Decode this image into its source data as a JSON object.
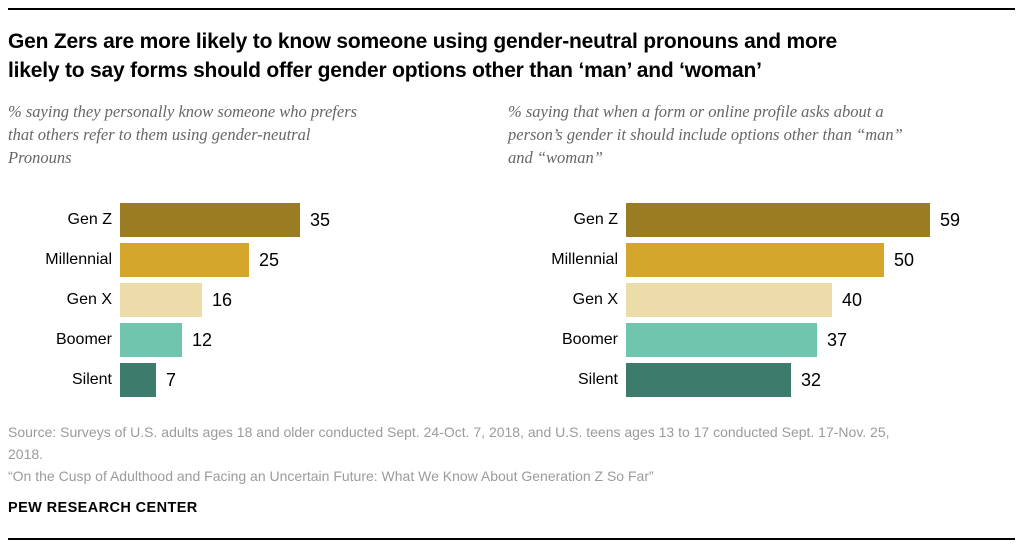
{
  "page": {
    "title": "Gen Zers are more likely to know someone using gender-neutral pronouns and more likely to say forms should offer gender options other than ‘man’ and ‘woman’",
    "title_lines": [
      "Gen Zers are more likely to know someone using gender-neutral pronouns and more",
      "likely to say forms should offer gender options other than ‘man’ and ‘woman’"
    ]
  },
  "colors": {
    "rule": "#000000",
    "title_text": "#000000",
    "subtitle_text": "#666666",
    "source_text": "#9b9b9b",
    "gen_z": "#9a7c22",
    "millennial": "#d4a72c",
    "gen_x": "#ecdcaa",
    "boomer": "#6fc5ad",
    "silent": "#3d7c6c"
  },
  "chart_data": [
    {
      "type": "bar",
      "orientation": "horizontal",
      "subtitle": "% saying they personally know someone who prefers that others refer to them using gender-neutral Pronouns",
      "subtitle_lines": [
        "% saying they personally know someone who prefers",
        "that others refer to them using gender-neutral",
        "Pronouns"
      ],
      "categories": [
        "Gen Z",
        "Millennial",
        "Gen X",
        "Boomer",
        "Silent"
      ],
      "values": [
        35,
        25,
        16,
        12,
        7
      ],
      "bar_colors": [
        "#9a7c22",
        "#d4a72c",
        "#ecdcaa",
        "#6fc5ad",
        "#3d7c6c"
      ],
      "data_label_position": "outside-end",
      "xlim": [
        0,
        62
      ],
      "grid": false,
      "legend": "none"
    },
    {
      "type": "bar",
      "orientation": "horizontal",
      "subtitle": "% saying that when a form or online profile asks about a person’s gender it should include options other than “man” and “woman”",
      "subtitle_lines": [
        "% saying that when a form or online profile asks about a",
        "person’s gender it should include options other than “man”",
        "and “woman”"
      ],
      "categories": [
        "Gen Z",
        "Millennial",
        "Gen X",
        "Boomer",
        "Silent"
      ],
      "values": [
        59,
        50,
        40,
        37,
        32
      ],
      "bar_colors": [
        "#9a7c22",
        "#d4a72c",
        "#ecdcaa",
        "#6fc5ad",
        "#3d7c6c"
      ],
      "data_label_position": "outside-end",
      "xlim": [
        0,
        62
      ],
      "grid": false,
      "legend": "none"
    }
  ],
  "footer": {
    "source": "Source: Surveys of U.S. adults ages 18 and older conducted Sept. 24-Oct. 7, 2018, and U.S. teens ages 13 to 17 conducted Sept. 17-Nov. 25, 2018.",
    "source_lines": [
      "Source: Surveys of U.S. adults ages 18 and older conducted Sept. 24-Oct. 7, 2018, and U.S. teens ages 13 to 17 conducted Sept. 17-Nov. 25,",
      "2018."
    ],
    "report_title": "“On the Cusp of Adulthood and Facing an Uncertain Future: What We Know About Generation Z So Far”",
    "brand": "PEW RESEARCH CENTER"
  }
}
